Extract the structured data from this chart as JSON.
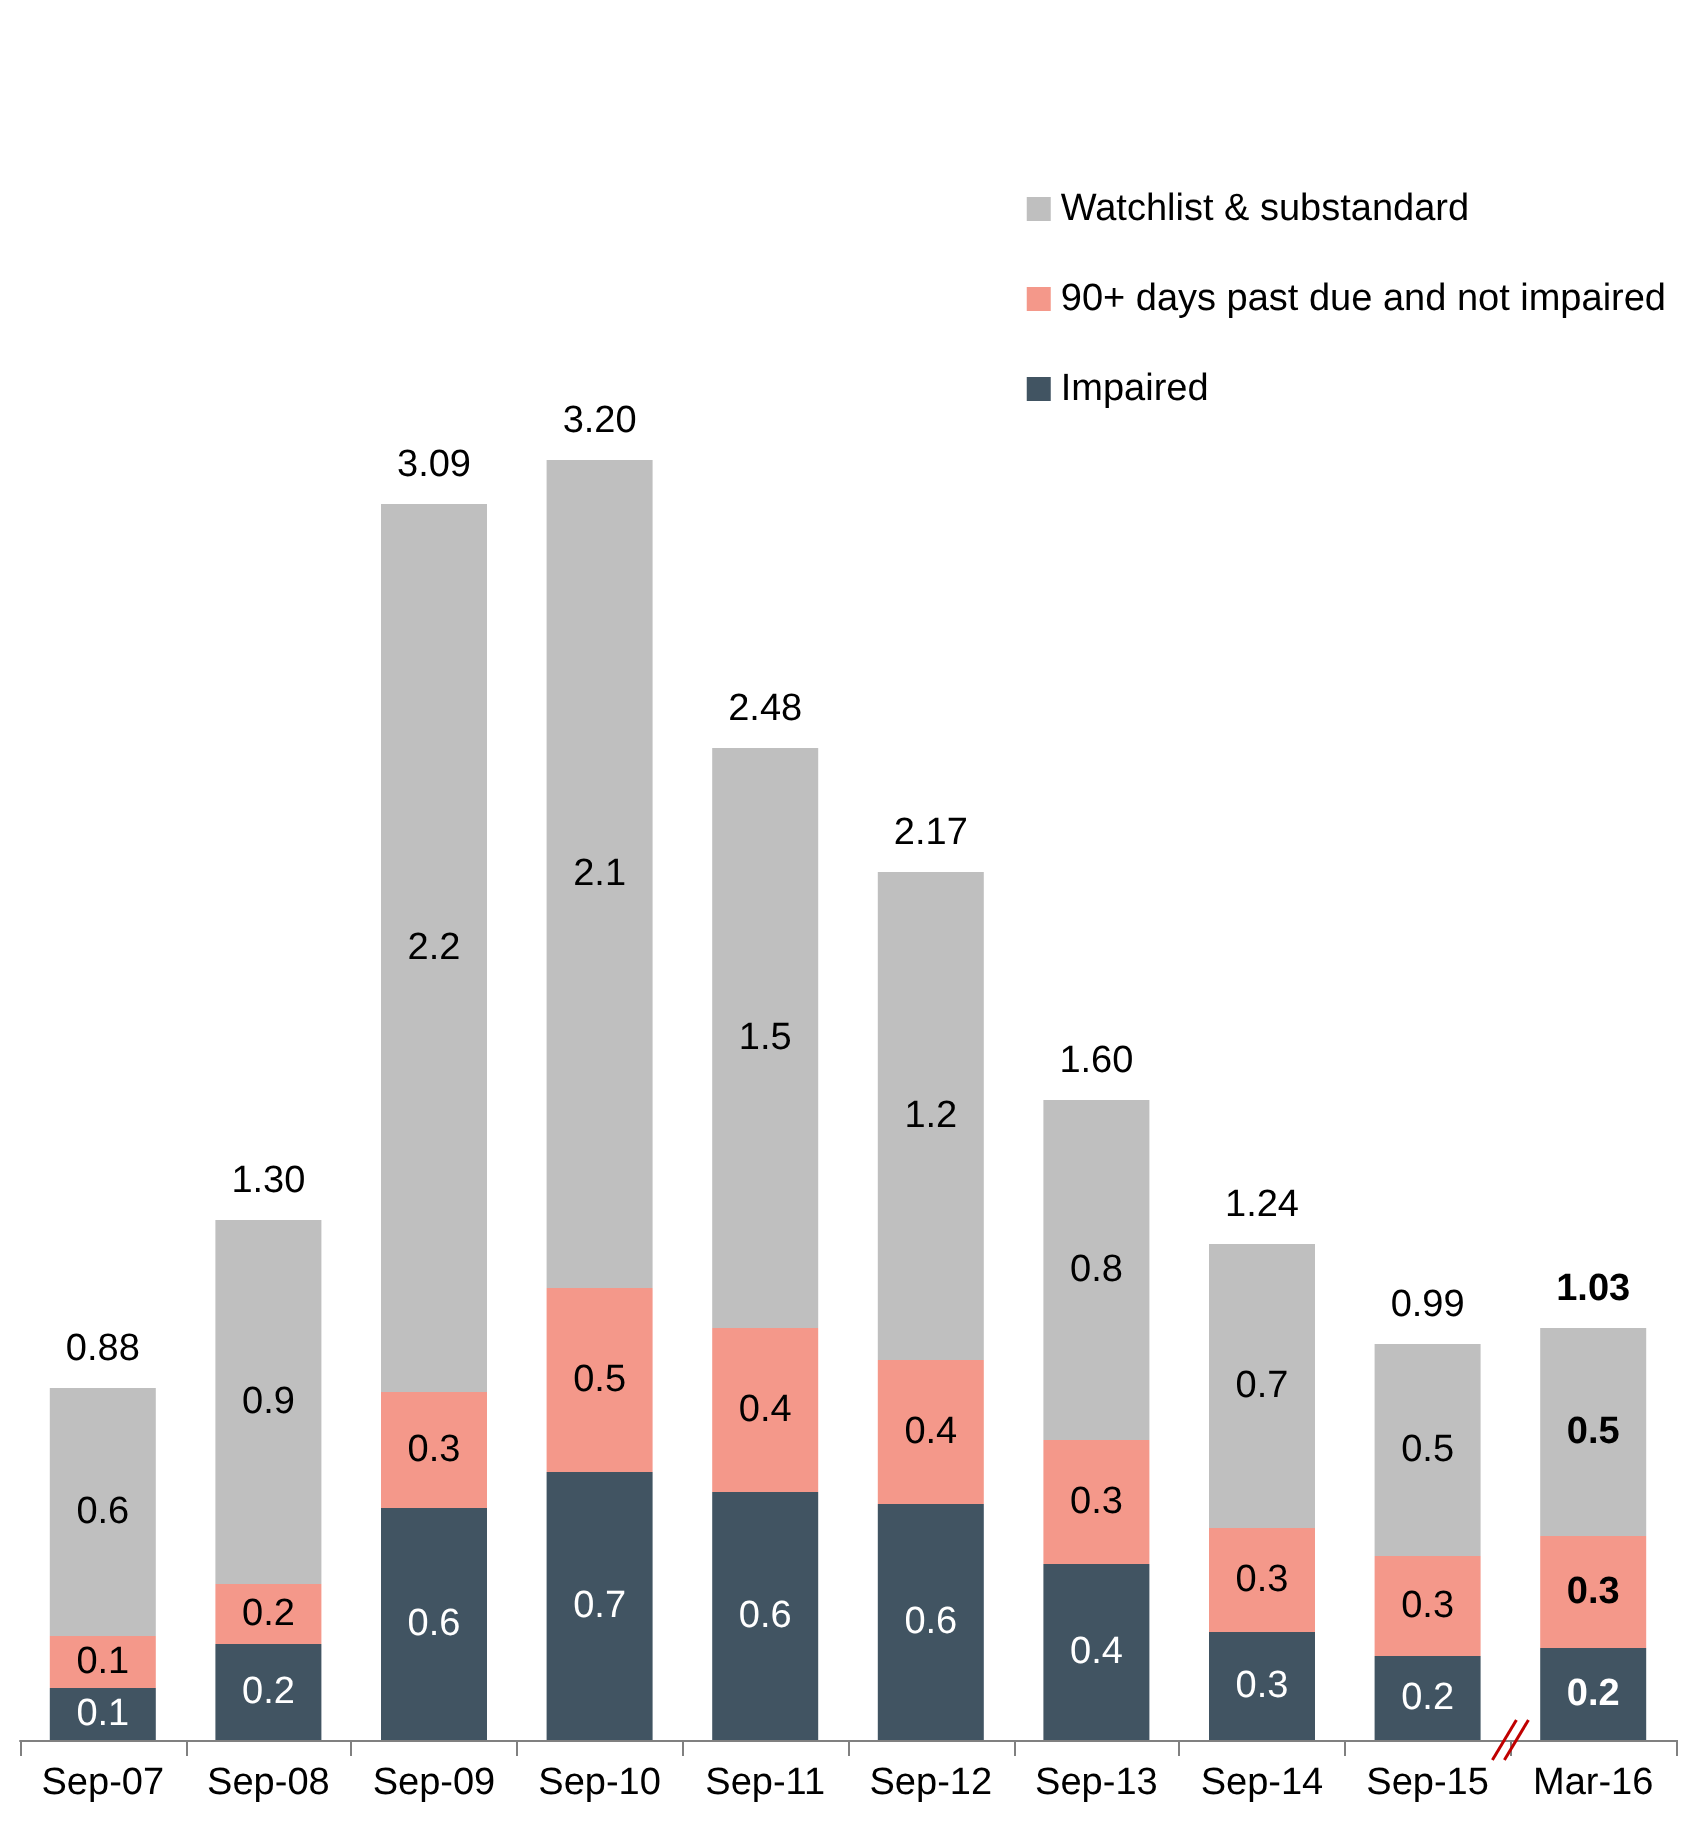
{
  "chart_data": {
    "type": "bar",
    "stacked": true,
    "categories": [
      "Sep-07",
      "Sep-08",
      "Sep-09",
      "Sep-10",
      "Sep-11",
      "Sep-12",
      "Sep-13",
      "Sep-14",
      "Sep-15",
      "Mar-16"
    ],
    "series": [
      {
        "name": "Impaired",
        "color": "#415462",
        "values": [
          0.13,
          0.24,
          0.58,
          0.67,
          0.62,
          0.59,
          0.44,
          0.27,
          0.21,
          0.23
        ],
        "value_labels": [
          "0.1",
          "0.2",
          "0.6",
          "0.7",
          "0.6",
          "0.6",
          "0.4",
          "0.3",
          "0.2",
          "0.2"
        ]
      },
      {
        "name": "90+ days past due and not impaired",
        "color": "#f4988a",
        "values": [
          0.13,
          0.15,
          0.29,
          0.46,
          0.41,
          0.36,
          0.31,
          0.26,
          0.25,
          0.28
        ],
        "value_labels": [
          "0.1",
          "0.2",
          "0.3",
          "0.5",
          "0.4",
          "0.4",
          "0.3",
          "0.3",
          "0.3",
          "0.3"
        ]
      },
      {
        "name": "Watchlist & substandard",
        "color": "#bfbfbf",
        "values": [
          0.62,
          0.91,
          2.22,
          2.07,
          1.45,
          1.22,
          0.85,
          0.71,
          0.53,
          0.52
        ],
        "value_labels": [
          "0.6",
          "0.9",
          "2.2",
          "2.1",
          "1.5",
          "1.2",
          "0.8",
          "0.7",
          "0.5",
          "0.5"
        ]
      }
    ],
    "totals": [
      "0.88",
      "1.30",
      "3.09",
      "3.20",
      "2.48",
      "2.17",
      "1.60",
      "1.24",
      "0.99",
      "1.03"
    ],
    "legend": "top right"
  }
}
